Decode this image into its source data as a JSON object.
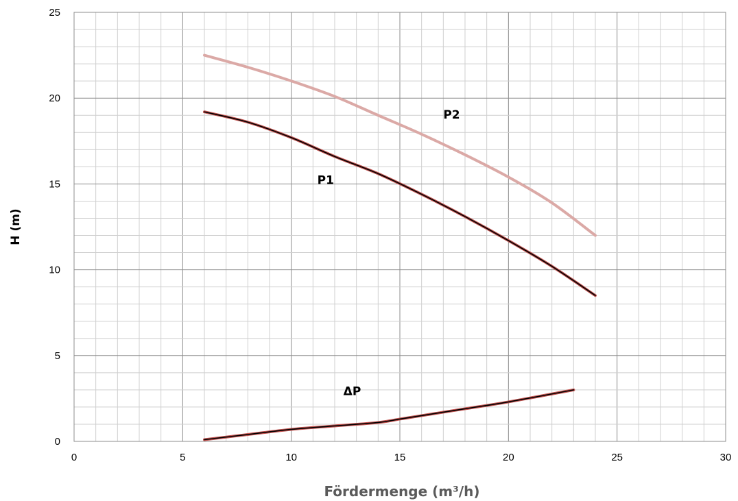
{
  "chart_data": {
    "type": "line",
    "xlabel": "Fördermenge (m³/h)",
    "ylabel": "H (m)",
    "xlim": [
      0,
      30
    ],
    "ylim": [
      0,
      25
    ],
    "x_ticks": [
      0,
      5,
      10,
      15,
      20,
      25,
      30
    ],
    "y_ticks": [
      0,
      5,
      10,
      15,
      20,
      25
    ],
    "x_tick_labels": [
      "0",
      "5",
      "10",
      "15",
      "20",
      "25",
      "30"
    ],
    "y_tick_labels": [
      "0",
      "5",
      "10",
      "15",
      "20",
      "25"
    ],
    "grid": {
      "major": true,
      "minor": true,
      "x_minor_step": 1,
      "y_minor_step": 1
    },
    "legend": "none",
    "series": [
      {
        "name": "P2",
        "color": "#dba9a6",
        "points": [
          [
            6,
            22.5
          ],
          [
            8,
            21.8
          ],
          [
            10,
            21.0
          ],
          [
            12,
            20.1
          ],
          [
            14,
            19.0
          ],
          [
            16,
            17.9
          ],
          [
            18,
            16.7
          ],
          [
            20,
            15.4
          ],
          [
            22,
            13.9
          ],
          [
            24,
            12.0
          ]
        ]
      },
      {
        "name": "P1",
        "color": "#c0504d",
        "overlay_color": "#000000",
        "points": [
          [
            6,
            19.2
          ],
          [
            8,
            18.6
          ],
          [
            10,
            17.7
          ],
          [
            12,
            16.6
          ],
          [
            14,
            15.6
          ],
          [
            16,
            14.4
          ],
          [
            18,
            13.1
          ],
          [
            20,
            11.7
          ],
          [
            22,
            10.2
          ],
          [
            24,
            8.5
          ]
        ]
      },
      {
        "name": "ΔP",
        "color": "#c0504d",
        "overlay_color": "#000000",
        "points": [
          [
            6,
            0.1
          ],
          [
            8,
            0.4
          ],
          [
            10,
            0.7
          ],
          [
            12,
            0.9
          ],
          [
            14,
            1.1
          ],
          [
            15,
            1.3
          ],
          [
            16,
            1.5
          ],
          [
            18,
            1.9
          ],
          [
            20,
            2.3
          ],
          [
            23,
            3.0
          ]
        ]
      }
    ],
    "curve_labels": [
      {
        "text": "P2",
        "x": 17.0,
        "y": 18.8
      },
      {
        "text": "P1",
        "x": 11.2,
        "y": 15.0
      },
      {
        "text": "ΔP",
        "x": 12.4,
        "y": 2.7
      }
    ]
  }
}
